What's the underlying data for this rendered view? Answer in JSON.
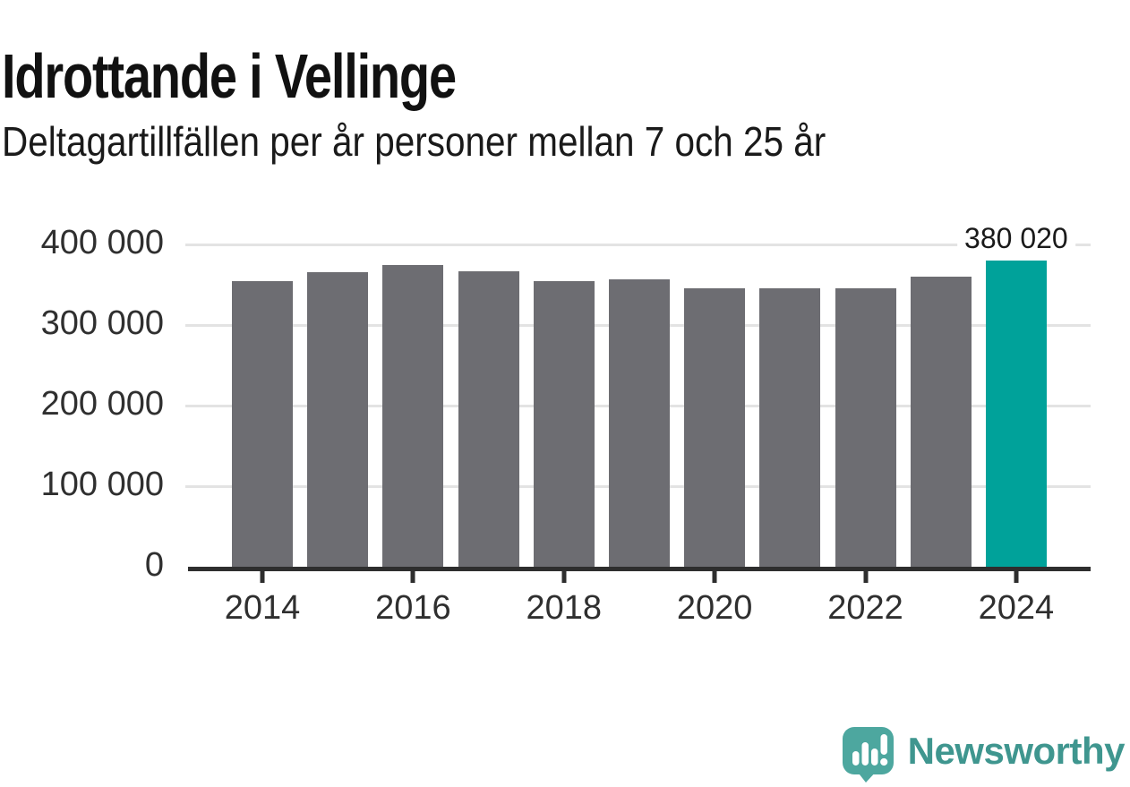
{
  "header": {
    "title": "Idrottande i Vellinge",
    "subtitle": "Deltagartillfällen per år personer mellan 7 och 25 år"
  },
  "chart_data": {
    "type": "bar",
    "title": "Idrottande i Vellinge",
    "subtitle": "Deltagartillfällen per år personer mellan 7 och 25 år",
    "xlabel": "",
    "ylabel": "",
    "categories": [
      2014,
      2015,
      2016,
      2017,
      2018,
      2019,
      2020,
      2021,
      2022,
      2023,
      2024
    ],
    "values": [
      355000,
      366000,
      374000,
      367000,
      355000,
      357000,
      346000,
      346000,
      346000,
      360000,
      380020
    ],
    "highlight_index": 10,
    "highlight_label": "380 020",
    "ylim": [
      0,
      400000
    ],
    "yticks": [
      0,
      100000,
      200000,
      300000,
      400000
    ],
    "ytick_labels": [
      "0",
      "100 000",
      "200 000",
      "300 000",
      "400 000"
    ],
    "xtick_labels": [
      "2014",
      "2016",
      "2018",
      "2020",
      "2022",
      "2024"
    ],
    "grid": "horizontal",
    "legend": "none",
    "bar_color": "#6d6d72",
    "highlight_color": "#00a29a",
    "axis_color": "#2e2e2e",
    "gridline_color": "#e3e3e3",
    "label_color": "#2f2f2f"
  },
  "footer": {
    "brand": "Newsworthy",
    "brand_color": "#3f968f",
    "icon": "bar-chart-speech-bubble-icon",
    "icon_color": "#4da79f"
  }
}
